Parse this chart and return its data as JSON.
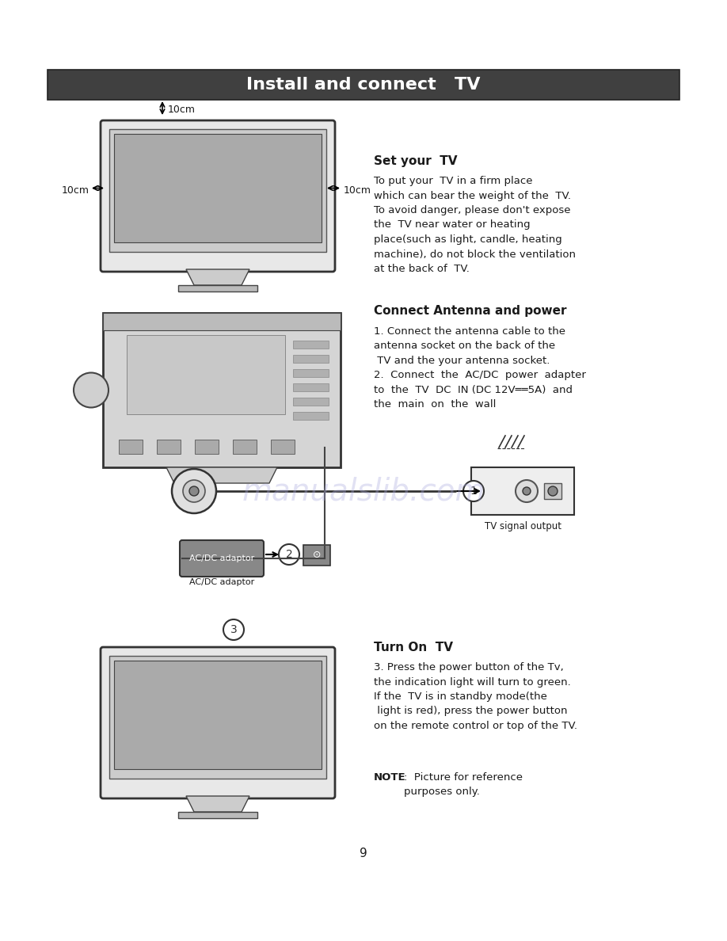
{
  "bg_color": "#ffffff",
  "header_bg": "#404040",
  "header_text": "Install and connect   TV",
  "header_text_color": "#ffffff",
  "header_fontsize": 16,
  "page_number": "9",
  "section1_title": "Set your  TV",
  "section1_body": "To put your  TV in a firm place\nwhich can bear the weight of the  TV.\nTo avoid danger, please don't expose\nthe  TV near water or heating\nplace(such as light, candle, heating\nmachine), do not block the ventilation\nat the back of  TV.",
  "section2_title": "Connect Antenna and power",
  "section2_body": "1. Connect the antenna cable to the\nantenna socket on the back of the\n TV and the your antenna socket.\n2.  Connect  the  AC/DC  power  adapter\nto  the  TV  DC  IN (DC 12V     5A)  and\nthe  main  on  the  wall",
  "section3_title": "Turn On  TV",
  "section3_body": "3. Press the power button of the Tv,\nthe indication light will turn to green.\nIf the  TV is in standby mode(the\n light is red), press the power button\non the remote control or top of the TV.",
  "note_text": "NOTE:  Picture for reference\npurposes only.",
  "watermark_text": "manualslib.com",
  "watermark_color": "#aaaadd",
  "text_color": "#1a1a1a",
  "label_color": "#000000"
}
